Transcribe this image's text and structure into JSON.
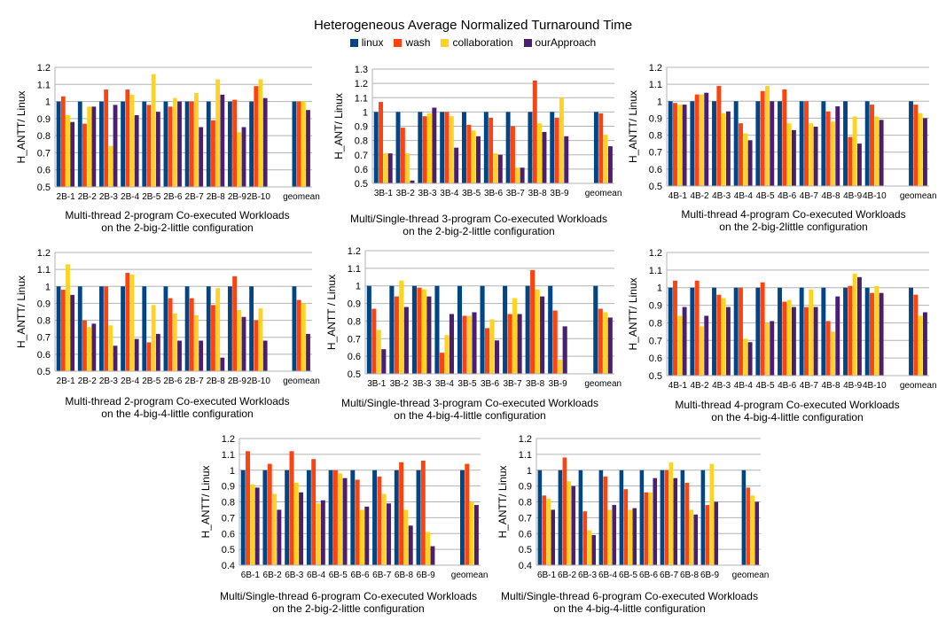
{
  "title": "Heterogeneous Average Normalized Turnaround Time",
  "colors": {
    "linux": "#004586",
    "wash": "#ff420e",
    "collaboration": "#ffd320",
    "ourApproach": "#4b1f6f"
  },
  "legend": [
    {
      "key": "linux",
      "label": "linux"
    },
    {
      "key": "wash",
      "label": "wash"
    },
    {
      "key": "collaboration",
      "label": "collaboration"
    },
    {
      "key": "ourApproach",
      "label": "ourApproach"
    }
  ],
  "chart_data": [
    {
      "type": "bar",
      "ylabel": "H_ANTT/ Linux",
      "ylim": [
        0.5,
        1.2
      ],
      "yticks": [
        "0.5",
        "0.6",
        "0.7",
        "0.8",
        "0.9",
        "1",
        "1.1",
        "1.2"
      ],
      "caption": [
        "Multi-thread 2-program Co-executed Workloads",
        "on the 2-big-2-little configuration"
      ],
      "categories": [
        "2B-1",
        "2B-2",
        "2B-3",
        "2B-4",
        "2B-5",
        "2B-6",
        "2B-7",
        "2B-8",
        "2B-9",
        "2B-10",
        "",
        "geomean"
      ],
      "series": [
        {
          "name": "linux",
          "values": [
            1,
            1,
            1,
            1,
            1,
            1,
            1,
            1,
            1,
            1,
            null,
            1
          ]
        },
        {
          "name": "wash",
          "values": [
            1.03,
            0.87,
            1.07,
            1.07,
            0.98,
            0.97,
            1,
            0.89,
            1.01,
            1.09,
            null,
            1
          ]
        },
        {
          "name": "collaboration",
          "values": [
            0.92,
            0.97,
            0.74,
            1.04,
            1.16,
            1.02,
            1.05,
            1.13,
            0.82,
            1.13,
            null,
            1
          ]
        },
        {
          "name": "ourApproach",
          "values": [
            0.88,
            0.97,
            0.98,
            0.92,
            0.94,
            1,
            0.85,
            1.04,
            0.85,
            1.02,
            null,
            0.95
          ]
        }
      ]
    },
    {
      "type": "bar",
      "ylabel": "H_ANT/ Linux",
      "ylim": [
        0.5,
        1.3
      ],
      "yticks": [
        "0.5",
        "0.6",
        "0.7",
        "0.8",
        "0.9",
        "1",
        "1.1",
        "1.2",
        "1.3"
      ],
      "caption": [
        "Multi/Single-thread 3-program Co-executed Workloads",
        "on the 2-big-2-little configuration"
      ],
      "categories": [
        "3B-1",
        "3B-2",
        "3B-3",
        "3B-4",
        "3B-5",
        "3B-6",
        "3B-7",
        "3B-8",
        "3B-9",
        "",
        "geomean"
      ],
      "series": [
        {
          "name": "linux",
          "values": [
            1,
            1,
            1,
            1,
            1,
            1,
            1,
            1,
            1,
            null,
            1
          ]
        },
        {
          "name": "wash",
          "values": [
            1.07,
            0.89,
            0.97,
            1,
            0.91,
            0.96,
            0.9,
            1.22,
            0.96,
            null,
            0.99
          ]
        },
        {
          "name": "collaboration",
          "values": [
            0.71,
            0.71,
            0.99,
            0.97,
            0.87,
            0.71,
            0.61,
            0.92,
            1.1,
            null,
            0.84
          ]
        },
        {
          "name": "ourApproach",
          "values": [
            0.71,
            0.52,
            1.03,
            0.75,
            0.83,
            0.7,
            0.61,
            0.86,
            0.83,
            null,
            0.76
          ]
        }
      ]
    },
    {
      "type": "bar",
      "ylabel": "H_ANTT/ Linux",
      "ylim": [
        0.5,
        1.2
      ],
      "yticks": [
        "0.5",
        "0.6",
        "0.7",
        "0.8",
        "0.9",
        "1",
        "1.1",
        "1.2"
      ],
      "caption": [
        "Multi-thread 4-program Co-executed Workloads",
        "on the 2-big-2little configuration"
      ],
      "categories": [
        "4B-1",
        "4B-2",
        "4B-3",
        "4B-4",
        "4B-5",
        "4B-6",
        "4B-7",
        "4B-8",
        "4B-9",
        "4B-10",
        "",
        "geomean"
      ],
      "series": [
        {
          "name": "linux",
          "values": [
            1,
            1,
            1,
            1,
            1,
            1,
            1,
            1,
            1,
            1,
            null,
            1
          ]
        },
        {
          "name": "wash",
          "values": [
            0.99,
            1.04,
            1.09,
            0.87,
            1.06,
            1.07,
            1,
            0.94,
            0.79,
            0.98,
            null,
            0.98
          ]
        },
        {
          "name": "collaboration",
          "values": [
            0.98,
            1.04,
            0.93,
            0.81,
            1.09,
            0.87,
            0.87,
            0.88,
            0.91,
            0.91,
            null,
            0.93
          ]
        },
        {
          "name": "ourApproach",
          "values": [
            0.98,
            1.05,
            0.94,
            0.77,
            1,
            0.83,
            0.85,
            0.97,
            0.75,
            0.89,
            null,
            0.9
          ]
        }
      ]
    },
    {
      "type": "bar",
      "ylabel": "H_ANTT/ Linux",
      "ylim": [
        0.5,
        1.2
      ],
      "yticks": [
        "0.5",
        "0.6",
        "0.7",
        "0.8",
        "0.9",
        "1",
        "1.1",
        "1.2"
      ],
      "caption": [
        "Multi-thread 2-program Co-executed Workloads",
        "on the 4-big-4-little configuration"
      ],
      "categories": [
        "2B-1",
        "2B-2",
        "2B-3",
        "2B-4",
        "2B-5",
        "2B-6",
        "2B-7",
        "2B-8",
        "2B-9",
        "2B-10",
        "",
        "geomean"
      ],
      "series": [
        {
          "name": "linux",
          "values": [
            1,
            1,
            1,
            1,
            1,
            1,
            1,
            1,
            1,
            1,
            null,
            1
          ]
        },
        {
          "name": "wash",
          "values": [
            0.98,
            0.8,
            1,
            1.08,
            0.67,
            0.93,
            0.93,
            0.89,
            1.06,
            0.8,
            null,
            0.92
          ]
        },
        {
          "name": "collaboration",
          "values": [
            1.13,
            0.76,
            0.77,
            1.07,
            0.89,
            0.84,
            0.83,
            0.99,
            0.86,
            0.87,
            null,
            0.9
          ]
        },
        {
          "name": "ourApproach",
          "values": [
            0.95,
            0.78,
            0.65,
            0.69,
            0.72,
            0.68,
            0.68,
            0.58,
            0.82,
            0.68,
            null,
            0.72
          ]
        }
      ]
    },
    {
      "type": "bar",
      "ylabel": "H_ANTT / Linux",
      "ylim": [
        0.5,
        1.2
      ],
      "yticks": [
        "0.5",
        "0.6",
        "0.7",
        "0.8",
        "0.9",
        "1",
        "1.1",
        "1.2"
      ],
      "caption": [
        "Multi/Single-thread 3-program Co-executed Workloads",
        "on the 4-big-4-little configuration"
      ],
      "categories": [
        "3B-1",
        "3B-2",
        "3B-3",
        "3B-4",
        "3B-5",
        "3B-6",
        "3B-7",
        "3B-8",
        "3B-9",
        "",
        "geomean"
      ],
      "series": [
        {
          "name": "linux",
          "values": [
            1,
            1,
            1,
            1,
            1,
            1,
            1,
            1,
            1,
            null,
            1
          ]
        },
        {
          "name": "wash",
          "values": [
            0.87,
            0.94,
            0.99,
            0.62,
            0.83,
            0.76,
            0.84,
            1.09,
            0.86,
            null,
            0.87
          ]
        },
        {
          "name": "collaboration",
          "values": [
            0.75,
            1.03,
            0.98,
            0.72,
            0.83,
            0.81,
            0.93,
            0.98,
            0.58,
            null,
            0.85
          ]
        },
        {
          "name": "ourApproach",
          "values": [
            0.64,
            0.88,
            0.94,
            0.84,
            0.85,
            0.69,
            0.84,
            0.94,
            0.77,
            null,
            0.82
          ]
        }
      ]
    },
    {
      "type": "bar",
      "ylabel": "H_ANTT/ Linux",
      "ylim": [
        0.5,
        1.2
      ],
      "yticks": [
        "0.5",
        "0.6",
        "0.7",
        "0.8",
        "0.9",
        "1",
        "1.1",
        "1.2"
      ],
      "caption": [
        "Multi-thread 4-program Co-executed Workloads",
        "on the 4-big-4-little configuration"
      ],
      "categories": [
        "4B-1",
        "4B-2",
        "4B-3",
        "4B-4",
        "4B-5",
        "4B-6",
        "4B-7",
        "4B-8",
        "4B-9",
        "4B-10",
        "",
        "geomean"
      ],
      "series": [
        {
          "name": "linux",
          "values": [
            1,
            1,
            1,
            1,
            1,
            1,
            1,
            1,
            1,
            1,
            null,
            1
          ]
        },
        {
          "name": "wash",
          "values": [
            1.04,
            1.04,
            0.96,
            1,
            1.03,
            0.92,
            0.89,
            0.81,
            1.01,
            0.97,
            null,
            0.96
          ]
        },
        {
          "name": "collaboration",
          "values": [
            0.84,
            0.78,
            0.94,
            0.71,
            0.8,
            0.93,
            0.99,
            0.75,
            1.08,
            1.01,
            null,
            0.84
          ]
        },
        {
          "name": "ourApproach",
          "values": [
            0.89,
            0.84,
            0.89,
            0.69,
            0.81,
            0.89,
            0.89,
            0.95,
            1.06,
            0.97,
            null,
            0.86
          ]
        }
      ]
    },
    {
      "type": "bar",
      "ylabel": "H_ANTT/ Linux",
      "ylim": [
        0.4,
        1.2
      ],
      "yticks": [
        "0.4",
        "0.5",
        "0.6",
        "0.7",
        "0.8",
        "0.9",
        "1",
        "1.1",
        "1.2"
      ],
      "caption": [
        "Multi/Single-thread 6-program Co-executed Workloads",
        "on the 2-big-2-little configuration"
      ],
      "categories": [
        "6B-1",
        "6B-2",
        "6B-3",
        "6B-4",
        "6B-5",
        "6B-6",
        "6B-7",
        "6B-8",
        "6B-9",
        "",
        "geomean"
      ],
      "series": [
        {
          "name": "linux",
          "values": [
            1,
            1,
            1,
            1,
            1,
            1,
            1,
            1,
            1,
            null,
            1
          ]
        },
        {
          "name": "wash",
          "values": [
            1.12,
            1.04,
            1.12,
            1.07,
            1,
            0.94,
            0.96,
            1.05,
            1.06,
            null,
            1.04
          ]
        },
        {
          "name": "collaboration",
          "values": [
            0.91,
            0.85,
            0.92,
            0.79,
            0.98,
            0.75,
            0.85,
            0.75,
            0.61,
            null,
            0.8
          ]
        },
        {
          "name": "ourApproach",
          "values": [
            0.89,
            0.75,
            0.86,
            0.81,
            0.95,
            0.77,
            0.79,
            0.65,
            0.52,
            null,
            0.78
          ]
        }
      ]
    },
    {
      "type": "bar",
      "ylabel": "H_ANTT/ Linux",
      "ylim": [
        0.4,
        1.2
      ],
      "yticks": [
        "0.4",
        "0.5",
        "0.6",
        "0.7",
        "0.8",
        "0.9",
        "1",
        "1.1",
        "1.2"
      ],
      "caption": [
        "Multi/Single-thread 6-program Co-executed Workloads",
        "on the 4-big-4-little configuration"
      ],
      "categories": [
        "6B-1",
        "6B-2",
        "6B-3",
        "6B-4",
        "6B-5",
        "6B-6",
        "6B-7",
        "6B-8",
        "6B-9",
        "",
        "geomean"
      ],
      "series": [
        {
          "name": "linux",
          "values": [
            1,
            1,
            1,
            1,
            1,
            1,
            1,
            1,
            1,
            null,
            1
          ]
        },
        {
          "name": "wash",
          "values": [
            0.84,
            1.08,
            0.74,
            0.96,
            0.88,
            0.86,
            1,
            0.92,
            0.78,
            null,
            0.89
          ]
        },
        {
          "name": "collaboration",
          "values": [
            0.82,
            0.93,
            0.62,
            0.75,
            0.75,
            0.86,
            1.05,
            0.75,
            1.04,
            null,
            0.84
          ]
        },
        {
          "name": "ourApproach",
          "values": [
            0.75,
            0.9,
            0.59,
            0.78,
            0.76,
            0.95,
            0.95,
            0.72,
            0.8,
            null,
            0.8
          ]
        }
      ]
    }
  ]
}
